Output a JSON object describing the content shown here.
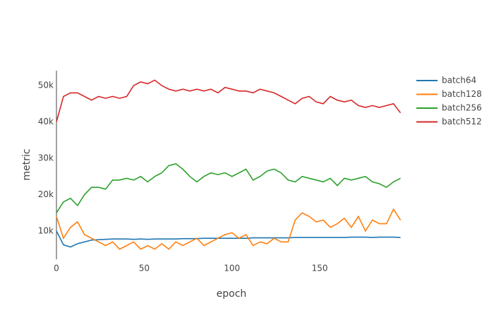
{
  "chart_data": {
    "type": "line",
    "x_label": "epoch",
    "y_label": "metric",
    "x": [
      0,
      4,
      8,
      12,
      16,
      20,
      24,
      28,
      32,
      36,
      40,
      44,
      48,
      52,
      56,
      60,
      64,
      68,
      72,
      76,
      80,
      84,
      88,
      92,
      96,
      100,
      104,
      108,
      112,
      116,
      120,
      124,
      128,
      132,
      136,
      140,
      144,
      148,
      152,
      156,
      160,
      164,
      168,
      172,
      176,
      180,
      184,
      188,
      192,
      196
    ],
    "series": [
      {
        "name": "batch64",
        "color": "#1f77b4",
        "values": [
          10000,
          6200,
          5600,
          6500,
          7000,
          7500,
          7600,
          7700,
          7800,
          7800,
          7800,
          7700,
          7800,
          7700,
          7800,
          7800,
          7800,
          7800,
          7900,
          7900,
          7900,
          8000,
          8000,
          8000,
          8000,
          8000,
          8000,
          8000,
          8100,
          8100,
          8100,
          8100,
          8100,
          8100,
          8200,
          8200,
          8200,
          8200,
          8200,
          8200,
          8200,
          8200,
          8300,
          8300,
          8300,
          8200,
          8300,
          8300,
          8300,
          8200
        ]
      },
      {
        "name": "batch128",
        "color": "#ff7f0e",
        "values": [
          14000,
          8000,
          11000,
          12500,
          9000,
          8000,
          7000,
          6000,
          7000,
          5000,
          6000,
          7000,
          5000,
          6000,
          5000,
          6500,
          5000,
          7000,
          6000,
          7000,
          8000,
          6000,
          7000,
          8000,
          9000,
          9500,
          8000,
          9000,
          6000,
          7000,
          6500,
          8000,
          7000,
          7000,
          13000,
          15000,
          14000,
          12500,
          13000,
          11000,
          12000,
          13500,
          11000,
          14000,
          10000,
          13000,
          12000,
          12000,
          16000,
          13000
        ]
      },
      {
        "name": "batch256",
        "color": "#2ca02c",
        "values": [
          15000,
          18000,
          19000,
          17000,
          20000,
          22000,
          22000,
          21500,
          24000,
          24000,
          24500,
          24000,
          25000,
          23500,
          25000,
          26000,
          28000,
          28500,
          27000,
          25000,
          23500,
          25000,
          26000,
          25500,
          26000,
          25000,
          26000,
          27000,
          24000,
          25000,
          26500,
          27000,
          26000,
          24000,
          23500,
          25000,
          24500,
          24000,
          23500,
          24500,
          22500,
          24500,
          24000,
          24500,
          25000,
          23500,
          23000,
          22000,
          23500,
          24500
        ]
      },
      {
        "name": "batch512",
        "color": "#d62728",
        "values": [
          40000,
          47000,
          48000,
          48000,
          47000,
          46000,
          47000,
          46500,
          47000,
          46500,
          47000,
          50000,
          51000,
          50500,
          51500,
          50000,
          49000,
          48500,
          49000,
          48500,
          49000,
          48500,
          49000,
          48000,
          49500,
          49000,
          48500,
          48500,
          48000,
          49000,
          48500,
          48000,
          47000,
          46000,
          45000,
          46500,
          47000,
          45500,
          45000,
          47000,
          46000,
          45500,
          46000,
          44500,
          44000,
          44500,
          44000,
          44500,
          45000,
          42500
        ]
      }
    ],
    "xlim": [
      0,
      199
    ],
    "ylim": [
      2200,
      54100
    ],
    "xticks": [
      0,
      50,
      100,
      150
    ],
    "yticks": [
      {
        "value": 10000,
        "label": "10k"
      },
      {
        "value": 20000,
        "label": "20k"
      },
      {
        "value": 30000,
        "label": "30k"
      },
      {
        "value": 40000,
        "label": "40k"
      },
      {
        "value": 50000,
        "label": "50k"
      }
    ],
    "grid": false,
    "legend": "top-right"
  }
}
